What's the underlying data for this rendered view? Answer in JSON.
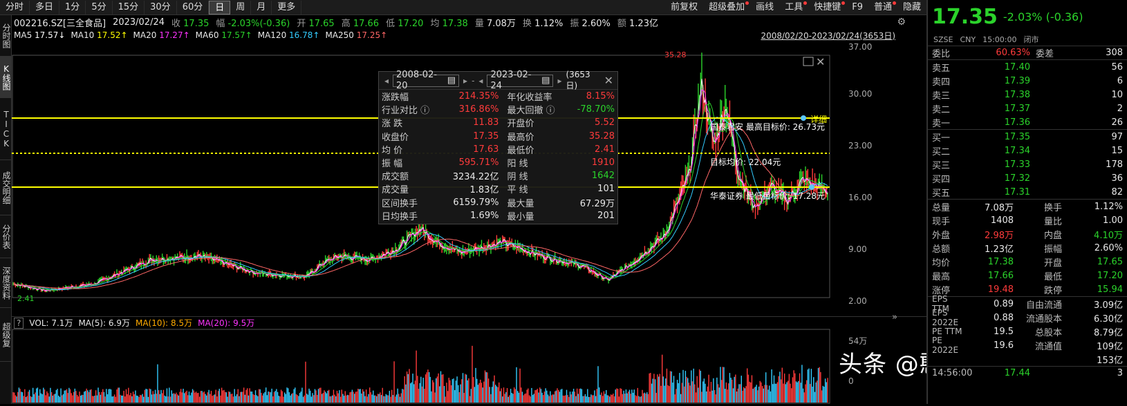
{
  "toolbar": {
    "periods": [
      "分时",
      "多日",
      "1分",
      "5分",
      "15分",
      "30分",
      "60分",
      "日",
      "周",
      "月",
      "更多"
    ],
    "active_period": "日",
    "right_buttons": [
      "前复权",
      "超级叠加",
      "画线",
      "工具",
      "快捷键",
      "F9",
      "普通",
      "隐藏"
    ]
  },
  "left_tabs": [
    "分时图",
    "K线图",
    "TICK",
    "成交明细",
    "分价表",
    "深度资料",
    "超级复"
  ],
  "info": {
    "code": "002216.SZ[三全食品]",
    "date": "2023/02/24",
    "close_label": "收",
    "close": "17.35",
    "chg_label": "幅",
    "chg": "-2.03%(-0.36)",
    "open_label": "开",
    "open": "17.65",
    "high_label": "高",
    "high": "17.66",
    "low_label": "低",
    "low": "17.20",
    "avg_label": "均",
    "avg": "17.38",
    "vol_label": "量",
    "vol": "7.08万",
    "turnover_label": "换",
    "turnover": "1.12%",
    "amp_label": "振",
    "amp": "2.60%",
    "amount_label": "额",
    "amount": "1.23亿"
  },
  "ma": [
    {
      "label": "MA5",
      "value": "17.57↓",
      "color": "#ffffff"
    },
    {
      "label": "MA10",
      "value": "17.52↑",
      "color": "#ffff00"
    },
    {
      "label": "MA20",
      "value": "17.27↑",
      "color": "#ff33ff"
    },
    {
      "label": "MA60",
      "value": "17.57↑",
      "color": "#2bd32b"
    },
    {
      "label": "MA120",
      "value": "16.78↑",
      "color": "#33ccff"
    },
    {
      "label": "MA250",
      "value": "17.25↑",
      "color": "#ff6666"
    }
  ],
  "range_label": "2008/02/20-2023/02/24(3653日)",
  "price_axis": [
    "37.00",
    "30.00",
    "23.00",
    "16.00",
    "9.00",
    "2.00"
  ],
  "annotations": {
    "high_marker": "35.28",
    "low_marker": "2.41",
    "target_high": "国泰君安  最高目标价: 26.73元",
    "target_avg": "目标均价: 22.04元",
    "target_low": "华泰证券  最低目标价: 17.28元",
    "detail": "详细"
  },
  "popup": {
    "start_date": "2008-02-20",
    "end_date": "2023-02-24",
    "days": "(3653日)",
    "rows": [
      {
        "k1": "涨跌幅",
        "v1": "214.35%",
        "c1": "red",
        "k2": "年化收益率",
        "v2": "8.15%",
        "c2": "red"
      },
      {
        "k1": "行业对比 ⓘ",
        "v1": "316.86%",
        "c1": "red",
        "k2": "最大回撤 ⓘ",
        "v2": "-78.70%",
        "c2": "green"
      },
      {
        "k1": "涨    跌",
        "v1": "11.83",
        "c1": "red",
        "k2": "开盘价",
        "v2": "5.52",
        "c2": "red"
      },
      {
        "k1": "收盘价",
        "v1": "17.35",
        "c1": "red",
        "k2": "最高价",
        "v2": "35.28",
        "c2": "red"
      },
      {
        "k1": "均    价",
        "v1": "17.63",
        "c1": "red",
        "k2": "最低价",
        "v2": "2.41",
        "c2": "red"
      },
      {
        "k1": "振    幅",
        "v1": "595.71%",
        "c1": "red",
        "k2": "阳    线",
        "v2": "1910",
        "c2": "red"
      },
      {
        "k1": "成交额",
        "v1": "3234.22亿",
        "c1": "white",
        "k2": "阴    线",
        "v2": "1642",
        "c2": "green"
      },
      {
        "k1": "成交量",
        "v1": "1.83亿",
        "c1": "white",
        "k2": "平    线",
        "v2": "101",
        "c2": "white"
      },
      {
        "k1": "区间换手",
        "v1": "6159.79%",
        "c1": "white",
        "k2": "最大量",
        "v2": "67.29万",
        "c2": "white"
      },
      {
        "k1": "日均换手",
        "v1": "1.69%",
        "c1": "white",
        "k2": "最小量",
        "v2": "201",
        "c2": "white"
      }
    ]
  },
  "vol": {
    "label": "VOL: 7.1万",
    "ma5": "MA(5): 6.9万",
    "ma10": "MA(10): 8.5万",
    "ma20": "MA(20): 9.5万",
    "axis_top": "54万",
    "axis_bottom": "0"
  },
  "right": {
    "price": "17.35",
    "change": "-2.03% (-0.36)",
    "market": "SZSE",
    "currency": "CNY",
    "time": "15:00:00",
    "status": "闭市",
    "weibi_label": "委比",
    "weibi": "60.63%",
    "weicha_label": "委差",
    "weicha": "308",
    "asks": [
      {
        "label": "卖五",
        "price": "17.40",
        "vol": "56"
      },
      {
        "label": "卖四",
        "price": "17.39",
        "vol": "6"
      },
      {
        "label": "卖三",
        "price": "17.38",
        "vol": "10"
      },
      {
        "label": "卖二",
        "price": "17.37",
        "vol": "2"
      },
      {
        "label": "卖一",
        "price": "17.36",
        "vol": "26"
      }
    ],
    "bids": [
      {
        "label": "买一",
        "price": "17.35",
        "vol": "97"
      },
      {
        "label": "买二",
        "price": "17.34",
        "vol": "15"
      },
      {
        "label": "买三",
        "price": "17.33",
        "vol": "178"
      },
      {
        "label": "买四",
        "price": "17.32",
        "vol": "36"
      },
      {
        "label": "买五",
        "price": "17.31",
        "vol": "82"
      }
    ],
    "stats": [
      {
        "k1": "总量",
        "v1": "7.08万",
        "c1": "white",
        "k2": "换手",
        "v2": "1.12%",
        "c2": "white"
      },
      {
        "k1": "现手",
        "v1": "1408",
        "c1": "white",
        "k2": "量比",
        "v2": "1.00",
        "c2": "white"
      },
      {
        "k1": "外盘",
        "v1": "2.98万",
        "c1": "red",
        "k2": "内盘",
        "v2": "4.10万",
        "c2": "green"
      },
      {
        "k1": "总额",
        "v1": "1.23亿",
        "c1": "white",
        "k2": "振幅",
        "v2": "2.60%",
        "c2": "white"
      },
      {
        "k1": "均价",
        "v1": "17.38",
        "c1": "green",
        "k2": "开盘",
        "v2": "17.65",
        "c2": "green"
      },
      {
        "k1": "最高",
        "v1": "17.66",
        "c1": "green",
        "k2": "最低",
        "v2": "17.20",
        "c2": "green"
      },
      {
        "k1": "涨停",
        "v1": "19.48",
        "c1": "red",
        "k2": "跌停",
        "v2": "15.94",
        "c2": "green"
      }
    ],
    "fund": [
      {
        "k1": "EPS TTM",
        "v1": "0.89",
        "k2": "自由流通",
        "v2": "3.09亿"
      },
      {
        "k1": "EPS 2022E",
        "v1": "0.88",
        "k2": "流通股本",
        "v2": "6.30亿"
      },
      {
        "k1": "PE TTM",
        "v1": "19.5",
        "k2": "总股本",
        "v2": "8.79亿"
      },
      {
        "k1": "PE 2022E",
        "v1": "19.6",
        "k2": "流通值",
        "v2": "109亿"
      },
      {
        "k1": "",
        "v1": "",
        "k2": "",
        "v2": "153亿"
      }
    ],
    "last_tick_time": "14:56:00",
    "last_tick_price": "17.44",
    "last_tick_vol": "3"
  },
  "watermark": "头条 @憨憨的禅兄"
}
